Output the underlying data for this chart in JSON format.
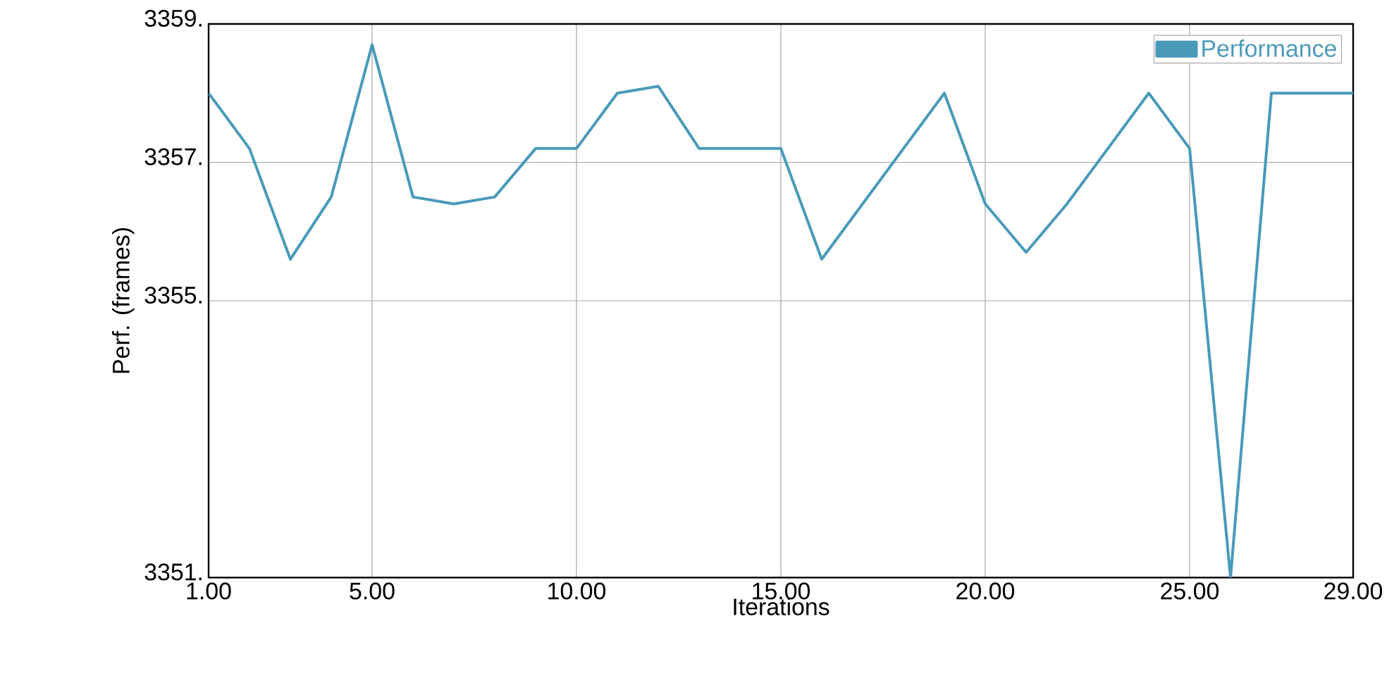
{
  "chart_data": {
    "type": "line",
    "xlabel": "Iterations",
    "ylabel": "Perf. (frames)",
    "x": [
      1,
      2,
      3,
      4,
      5,
      6,
      7,
      8,
      9,
      10,
      11,
      12,
      13,
      14,
      15,
      16,
      17,
      18,
      19,
      20,
      21,
      22,
      23,
      24,
      25,
      26,
      27,
      28,
      29
    ],
    "series": [
      {
        "name": "Performance",
        "color": "#4a9aba",
        "values": [
          3358.0,
          3357.2,
          3355.6,
          3356.5,
          3358.7,
          3356.5,
          3356.4,
          3356.5,
          3357.2,
          3357.2,
          3358.0,
          3358.1,
          3357.2,
          3357.2,
          3357.2,
          3355.6,
          3356.4,
          3357.2,
          3358.0,
          3356.4,
          3355.7,
          3356.4,
          3357.2,
          3358.0,
          3357.2,
          3351,
          3358.0,
          3358.0,
          3358.0
        ]
      }
    ],
    "xlim": [
      1,
      29
    ],
    "ylim": [
      3351,
      3359
    ],
    "xticks": [
      {
        "value": 1,
        "label": "1.00"
      },
      {
        "value": 5,
        "label": "5.00"
      },
      {
        "value": 10,
        "label": "10.00"
      },
      {
        "value": 15,
        "label": "15.00"
      },
      {
        "value": 20,
        "label": "20.00"
      },
      {
        "value": 25,
        "label": "25.00"
      },
      {
        "value": 29,
        "label": "29.00"
      }
    ],
    "yticks": [
      {
        "value": 3351,
        "label": "3351."
      },
      {
        "value": 3355,
        "label": "3355."
      },
      {
        "value": 3357,
        "label": "3357."
      },
      {
        "value": 3359,
        "label": "3359."
      }
    ],
    "grid": true,
    "legend": "top right",
    "marker": "none",
    "line_style": "solid"
  }
}
